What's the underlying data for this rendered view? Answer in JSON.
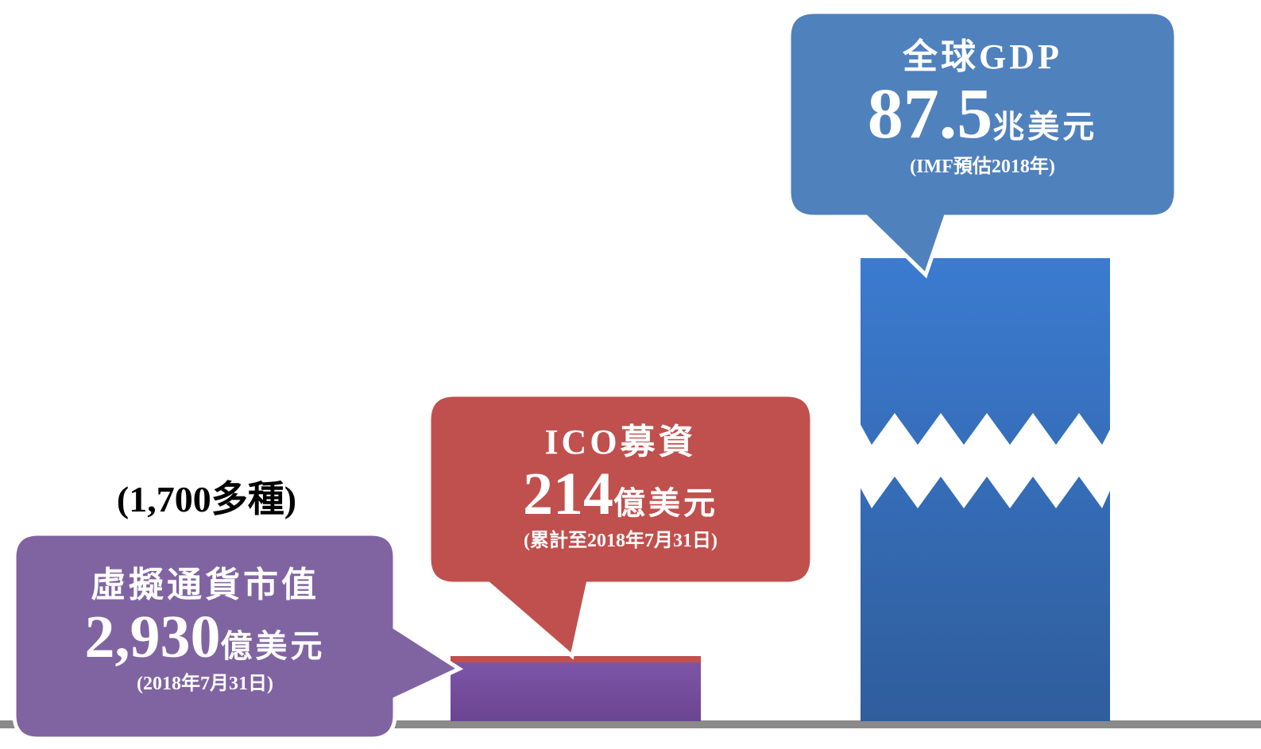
{
  "note_top": "(1,700多種)",
  "callouts": [
    {
      "title": "虛擬通貨市值",
      "value": "2,930",
      "unit": "億美元",
      "note": "(2018年7月31日)"
    },
    {
      "title": "ICO募資",
      "value": "214",
      "unit": "億美元",
      "note": "(累計至2018年7月31日)"
    },
    {
      "title": "全球GDP",
      "value": "87.5",
      "unit": "兆美元",
      "note": "(IMF預估2018年)"
    }
  ]
}
